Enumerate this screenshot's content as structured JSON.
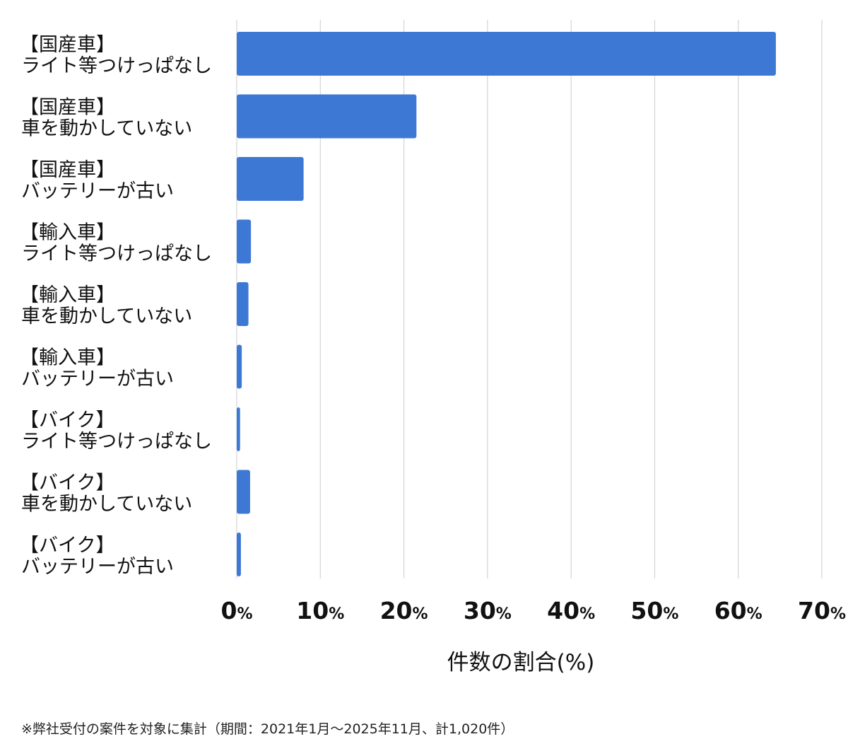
{
  "chart_data": {
    "type": "bar",
    "orientation": "horizontal",
    "categories": [
      [
        "【国産車】",
        "ライト等つけっぱなし"
      ],
      [
        "【国産車】",
        "車を動かしていない"
      ],
      [
        "【国産車】",
        "バッテリーが古い"
      ],
      [
        "【輸入車】",
        "ライト等つけっぱなし"
      ],
      [
        "【輸入車】",
        "車を動かしていない"
      ],
      [
        "【輸入車】",
        "バッテリーが古い"
      ],
      [
        "【バイク】",
        "ライト等つけっぱなし"
      ],
      [
        "【バイク】",
        "車を動かしていない"
      ],
      [
        "【バイク】",
        "バッテリーが古い"
      ]
    ],
    "values": [
      64.5,
      21.5,
      8.0,
      1.7,
      1.4,
      0.6,
      0.4,
      1.6,
      0.5
    ],
    "xlabel": "件数の割合(%)",
    "xlim": [
      0,
      70
    ],
    "ticks": [
      {
        "num": "0",
        "unit": "%"
      },
      {
        "num": "10",
        "unit": "%"
      },
      {
        "num": "20",
        "unit": "%"
      },
      {
        "num": "30",
        "unit": "%"
      },
      {
        "num": "40",
        "unit": "%"
      },
      {
        "num": "50",
        "unit": "%"
      },
      {
        "num": "60",
        "unit": "%"
      },
      {
        "num": "70",
        "unit": "%"
      }
    ],
    "grid": true,
    "bar_color": "#3d79d4",
    "grid_color": "#d4d4d4"
  },
  "footnote": "※弊社受付の案件を対象に集計（期間：2021年1月〜2025年11月、計1,020件）"
}
